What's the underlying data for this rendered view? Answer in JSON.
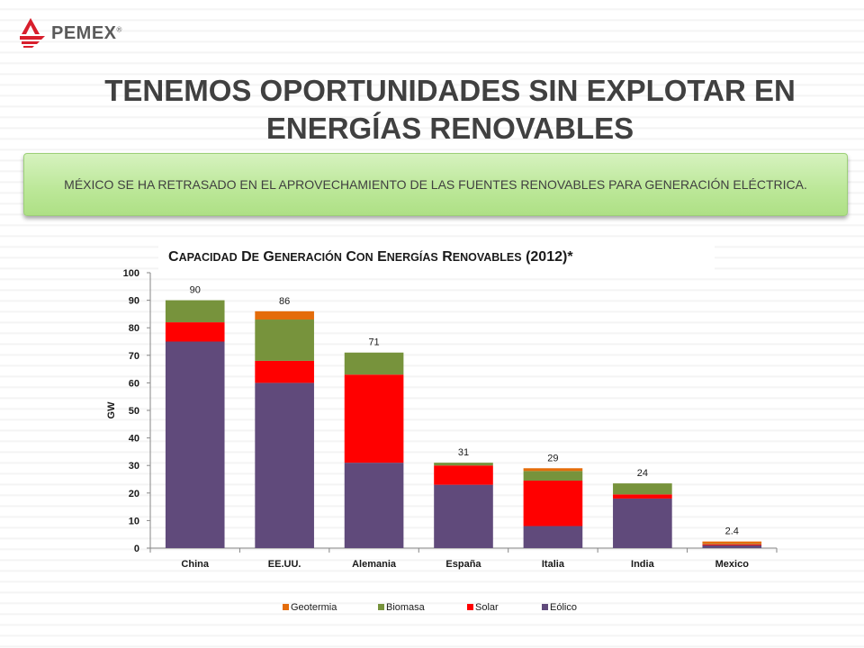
{
  "header": {
    "logo_text": "PEMEX",
    "logo_reg": "®",
    "title_line1": "TENEMOS OPORTUNIDADES SIN EXPLOTAR EN",
    "title_line2": "ENERGÍAS RENOVABLES"
  },
  "banner": {
    "text": "MÉXICO SE HA RETRASADO EN EL APROVECHAMIENTO DE LAS FUENTES RENOVABLES PARA GENERACIÓN ELÉCTRICA."
  },
  "chart_data": {
    "type": "bar",
    "stacked": true,
    "title": "Capacidad de Generación con Energías Renovables (2012)*",
    "ylabel": "GW",
    "xlabel": "",
    "ylim": [
      0,
      100
    ],
    "yticks": [
      0,
      10,
      20,
      30,
      40,
      50,
      60,
      70,
      80,
      90,
      100
    ],
    "grid": false,
    "legend_position": "bottom",
    "categories": [
      "China",
      "EE.UU.",
      "Alemania",
      "España",
      "Italia",
      "India",
      "Mexico"
    ],
    "series": [
      {
        "name": "Eólico",
        "color": "#604a7b",
        "values": [
          75,
          60,
          31,
          23,
          8,
          18,
          1.0
        ]
      },
      {
        "name": "Solar",
        "color": "#ff0000",
        "values": [
          7,
          8,
          32,
          7,
          16.5,
          1.5,
          0.4
        ]
      },
      {
        "name": "Biomasa",
        "color": "#77933c",
        "values": [
          8,
          15,
          8,
          1,
          3.5,
          4,
          0.2
        ]
      },
      {
        "name": "Geotermia",
        "color": "#e46c0a",
        "values": [
          0,
          3,
          0,
          0,
          1,
          0,
          0.8
        ]
      }
    ],
    "totals": [
      "90",
      "86",
      "71",
      "31",
      "29",
      "24",
      "2.4"
    ],
    "legend_order": [
      "Geotermia",
      "Biomasa",
      "Solar",
      "Eólico"
    ]
  }
}
